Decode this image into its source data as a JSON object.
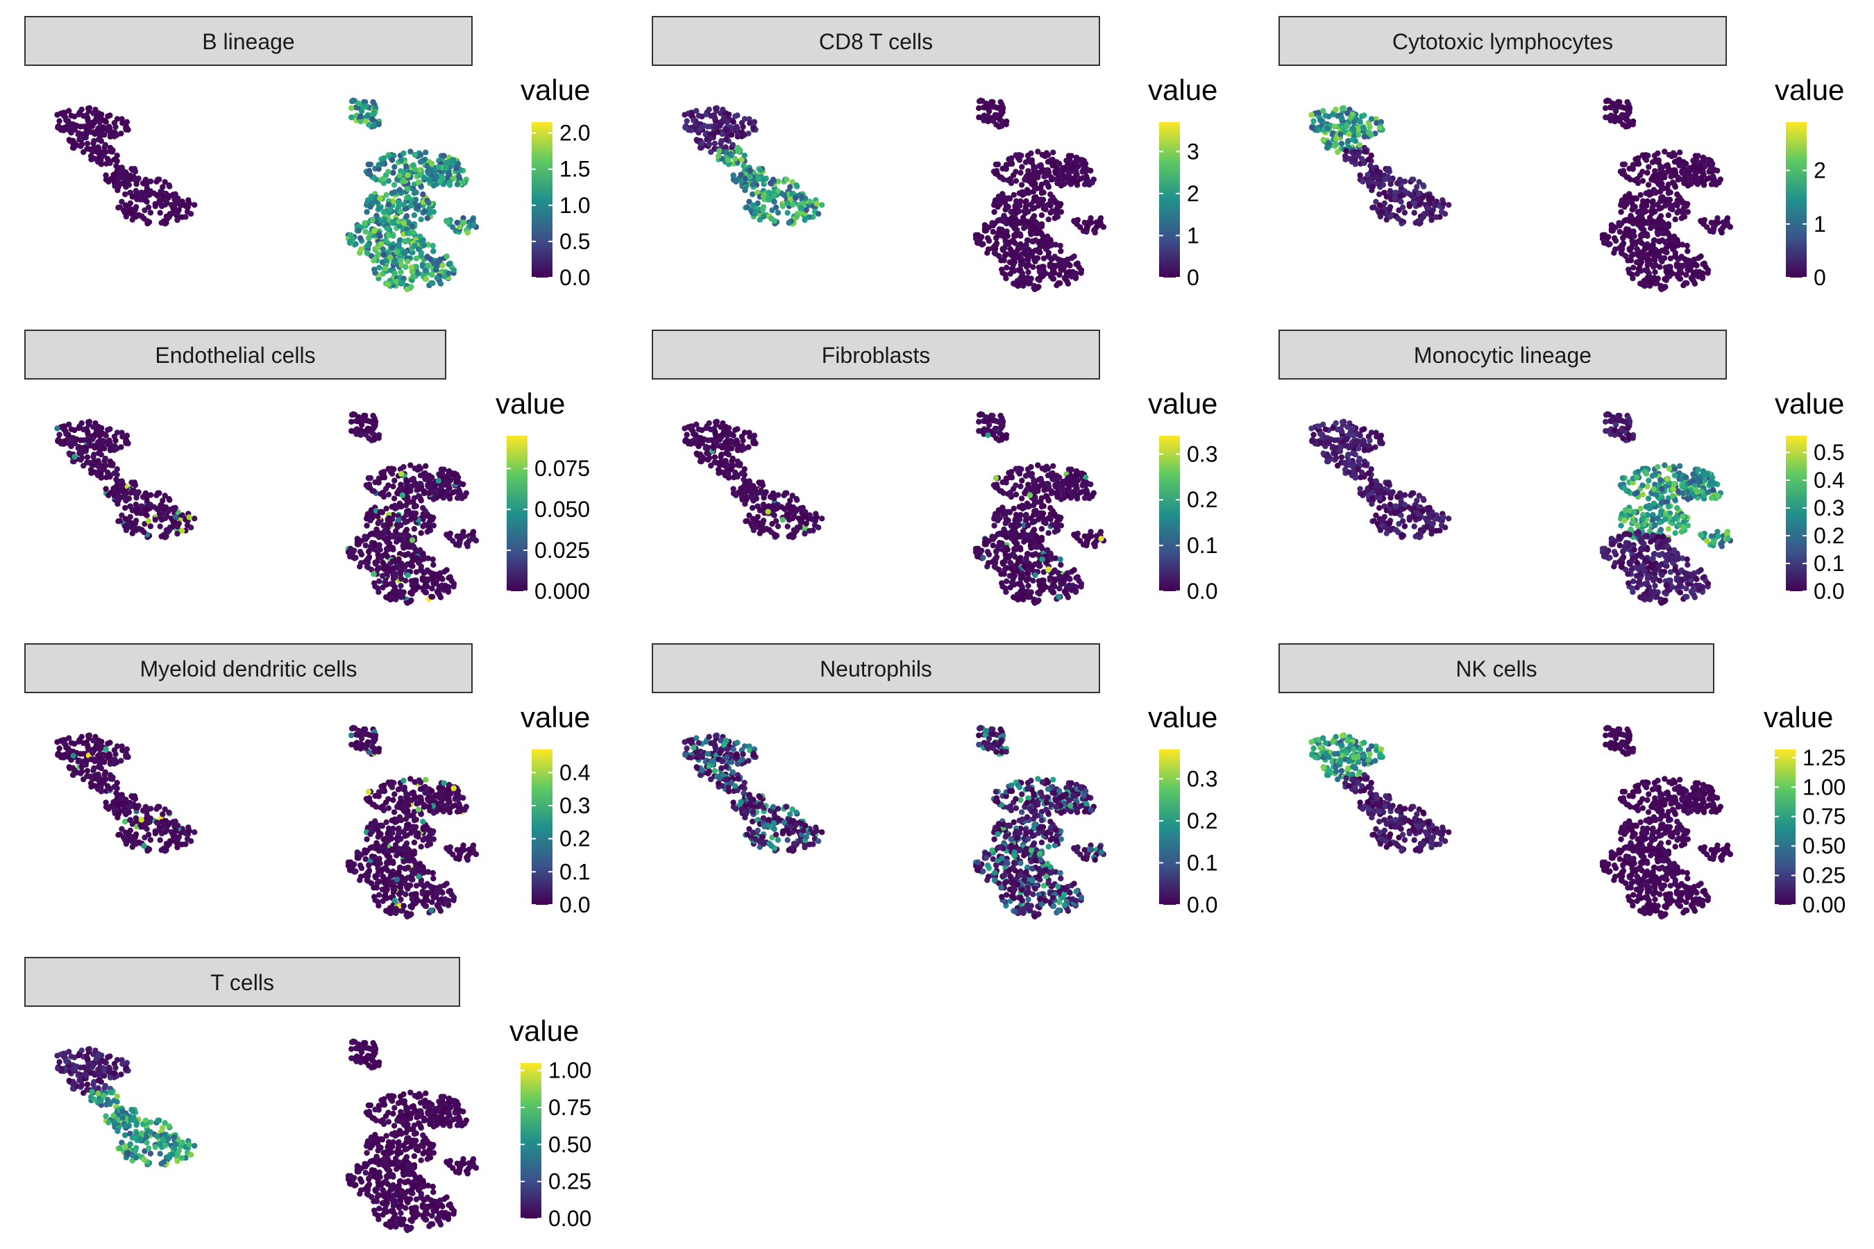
{
  "chart_data": {
    "type": "scatter",
    "x": [],
    "y": [],
    "color_scale": "viridis",
    "legend_title": "value",
    "panels": [
      {
        "title": "B lineage",
        "ticks": [
          "0.0",
          "0.5",
          "1.0",
          "1.5",
          "2.0"
        ],
        "tick_values": [
          0,
          0.5,
          1.0,
          1.5,
          2.0
        ],
        "max": 2.15,
        "high_in": [
          "cluster-right"
        ],
        "right_mean": 0.95,
        "left_mean": 0.0
      },
      {
        "title": "CD8 T cells",
        "ticks": [
          "0",
          "1",
          "2",
          "3"
        ],
        "tick_values": [
          0,
          1,
          2,
          3
        ],
        "max": 3.7,
        "high_in": [
          "cluster-left-mid",
          "cluster-left-lower"
        ],
        "right_mean": 0.0,
        "left_mean": 2.2
      },
      {
        "title": "Cytotoxic lymphocytes",
        "ticks": [
          "0",
          "1",
          "2"
        ],
        "tick_values": [
          0,
          1,
          2
        ],
        "max": 2.9,
        "high_in": [
          "cluster-left-top"
        ],
        "right_mean": 0.0,
        "left_mean": 1.3
      },
      {
        "title": "Endothelial cells",
        "ticks": [
          "0.000",
          "0.025",
          "0.050",
          "0.075"
        ],
        "tick_values": [
          0,
          0.025,
          0.05,
          0.075
        ],
        "max": 0.095,
        "high_in": [
          "sparse"
        ],
        "right_mean": 0.003,
        "left_mean": 0.003
      },
      {
        "title": "Fibroblasts",
        "ticks": [
          "0.0",
          "0.1",
          "0.2",
          "0.3"
        ],
        "tick_values": [
          0,
          0.1,
          0.2,
          0.3
        ],
        "max": 0.34,
        "high_in": [
          "sparse"
        ],
        "right_mean": 0.02,
        "left_mean": 0.03
      },
      {
        "title": "Monocytic lineage",
        "ticks": [
          "0.0",
          "0.1",
          "0.2",
          "0.3",
          "0.4",
          "0.5"
        ],
        "tick_values": [
          0,
          0.1,
          0.2,
          0.3,
          0.4,
          0.5
        ],
        "max": 0.56,
        "high_in": [
          "cluster-right-mid"
        ],
        "right_mean": 0.1,
        "left_mean": 0.03
      },
      {
        "title": "Myeloid dendritic cells",
        "ticks": [
          "0.0",
          "0.1",
          "0.2",
          "0.3",
          "0.4"
        ],
        "tick_values": [
          0,
          0.1,
          0.2,
          0.3,
          0.4
        ],
        "max": 0.47,
        "high_in": [
          "sparse"
        ],
        "right_mean": 0.01,
        "left_mean": 0.005
      },
      {
        "title": "Neutrophils",
        "ticks": [
          "0.0",
          "0.1",
          "0.2",
          "0.3"
        ],
        "tick_values": [
          0,
          0.1,
          0.2,
          0.3
        ],
        "max": 0.37,
        "high_in": [
          "scattered"
        ],
        "right_mean": 0.06,
        "left_mean": 0.06
      },
      {
        "title": "NK cells",
        "ticks": [
          "0.00",
          "0.25",
          "0.50",
          "0.75",
          "1.00",
          "1.25"
        ],
        "tick_values": [
          0,
          0.25,
          0.5,
          0.75,
          1.0,
          1.25
        ],
        "max": 1.32,
        "high_in": [
          "cluster-left-top"
        ],
        "right_mean": 0.0,
        "left_mean": 0.55
      },
      {
        "title": "T cells",
        "ticks": [
          "0.00",
          "0.25",
          "0.50",
          "0.75",
          "1.00"
        ],
        "tick_values": [
          0,
          0.25,
          0.5,
          0.75,
          1.0
        ],
        "max": 1.05,
        "high_in": [
          "cluster-left-lower",
          "cluster-left-mid"
        ],
        "right_mean": 0.0,
        "left_mean": 0.6
      }
    ]
  }
}
